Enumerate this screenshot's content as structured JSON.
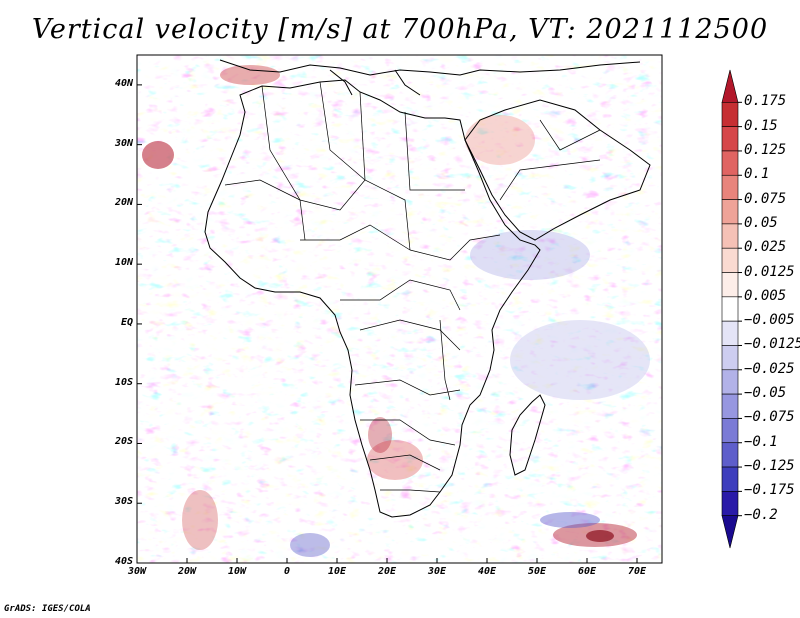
{
  "title": "Vertical velocity [m/s] at 700hPa, VT: 2021112500",
  "credit": "GrADS: IGES/COLA",
  "latitude_labels": [
    "40N",
    "30N",
    "20N",
    "10N",
    "EQ",
    "10S",
    "20S",
    "30S",
    "40S"
  ],
  "latitude_values": [
    40,
    30,
    20,
    10,
    0,
    -10,
    -20,
    -30,
    -40
  ],
  "longitude_labels": [
    "30W",
    "20W",
    "10W",
    "0",
    "10E",
    "20E",
    "30E",
    "40E",
    "50E",
    "60E",
    "70E"
  ],
  "longitude_values": [
    -30,
    -20,
    -10,
    0,
    10,
    20,
    30,
    40,
    50,
    60,
    70
  ],
  "map_extent": {
    "lon_min": -30,
    "lon_max": 75,
    "lat_min": -40,
    "lat_max": 45
  },
  "colorbar": {
    "labels": [
      "0.175",
      "0.15",
      "0.125",
      "0.1",
      "0.075",
      "0.05",
      "0.025",
      "0.0125",
      "0.005",
      "−0.005",
      "−0.0125",
      "−0.025",
      "−0.05",
      "−0.075",
      "−0.1",
      "−0.125",
      "−0.175",
      "−0.2"
    ],
    "colors": [
      "#b2182b",
      "#c62f33",
      "#d6474a",
      "#e06462",
      "#e8847c",
      "#efa398",
      "#f5c1b6",
      "#fadad1",
      "#fdeee9",
      "#ffffff",
      "#e4e4f7",
      "#cdcdf0",
      "#b2b2e8",
      "#9797e0",
      "#7b7bd6",
      "#5e5ecb",
      "#3e3ebd",
      "#2a1aa8",
      "#1a0a90"
    ]
  }
}
